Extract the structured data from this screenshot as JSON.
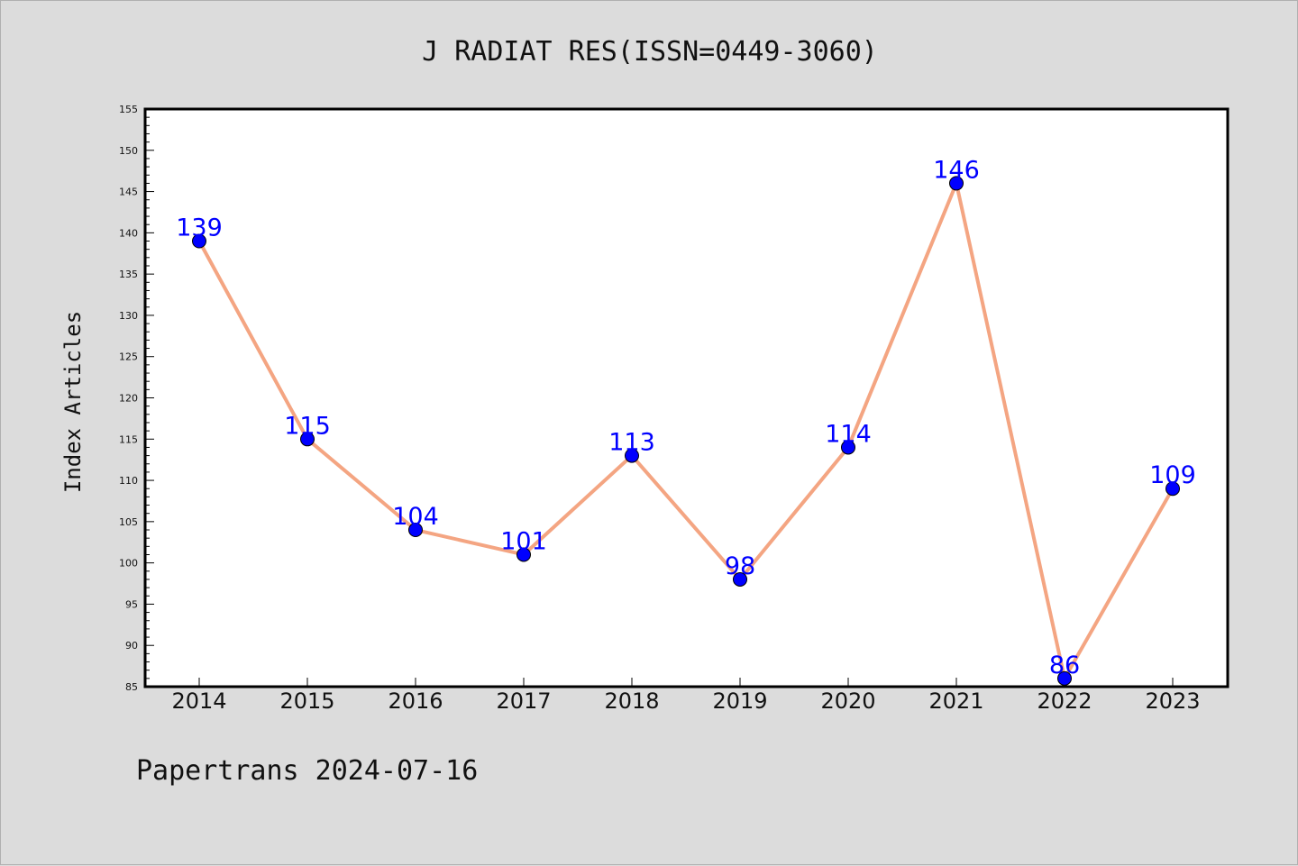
{
  "chart_data": {
    "type": "line",
    "title": "J RADIAT RES(ISSN=0449-3060)",
    "xlabel": "",
    "ylabel": "Index Articles",
    "categories": [
      "2014",
      "2015",
      "2016",
      "2017",
      "2018",
      "2019",
      "2020",
      "2021",
      "2022",
      "2023"
    ],
    "values": [
      139,
      115,
      104,
      101,
      113,
      98,
      114,
      146,
      86,
      109
    ],
    "ylim": [
      85,
      155
    ],
    "yticks": [
      "85",
      "90",
      "95",
      "100",
      "105",
      "110",
      "115",
      "120",
      "125",
      "130",
      "135",
      "140",
      "145",
      "150",
      "155"
    ],
    "grid": false,
    "legend": "none",
    "line_color": "#f4a582",
    "marker_color": "#0000ff",
    "label_color": "#0000ff",
    "background_color": "#dcdcdc",
    "plot_background": "#ffffff"
  },
  "footer": "Papertrans 2024-07-16"
}
